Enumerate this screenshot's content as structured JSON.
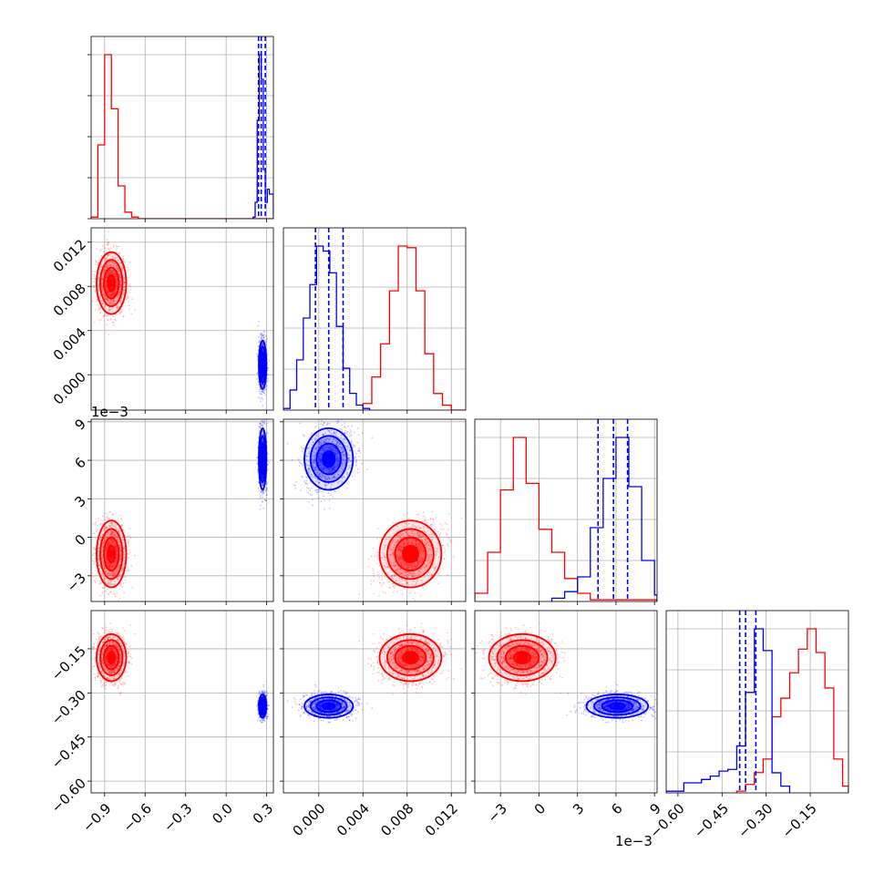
{
  "chart_data": {
    "type": "corner",
    "parameters": [
      {
        "ticks": [
          -0.9,
          -0.6,
          -0.3,
          0.0,
          0.3
        ],
        "tick_labels": [
          "−0.9",
          "−0.6",
          "−0.3",
          "0.0",
          "0.3"
        ],
        "range": [
          -1.0,
          0.35
        ]
      },
      {
        "ticks": [
          0.0,
          0.004,
          0.008,
          0.012
        ],
        "tick_labels": [
          "0.000",
          "0.004",
          "0.008",
          "0.012"
        ],
        "range": [
          -0.0032,
          0.0133
        ]
      },
      {
        "ticks": [
          -3,
          0,
          3,
          6,
          9
        ],
        "tick_labels": [
          "−3",
          "0",
          "3",
          "6",
          "9"
        ],
        "range": [
          -5,
          9.2
        ],
        "offset_label": "1e−3"
      },
      {
        "ticks": [
          -0.6,
          -0.45,
          -0.3,
          -0.15
        ],
        "tick_labels": [
          "−0.60",
          "−0.45",
          "−0.30",
          "−0.15"
        ],
        "range": [
          -0.64,
          -0.02
        ]
      }
    ],
    "series": [
      {
        "color": "#ff0000",
        "means": [
          -0.85,
          0.0083,
          -1.3,
          -0.18
        ],
        "sigmas": [
          0.055,
          0.0014,
          1.3,
          0.04
        ],
        "histograms": [
          {
            "edges": [
              -1.0,
              -0.95,
              -0.9,
              -0.85,
              -0.8,
              -0.75,
              -0.7,
              -0.65,
              -0.6,
              -0.55,
              0.35
            ],
            "counts": [
              0.01,
              0.45,
              1.0,
              0.67,
              0.2,
              0.04,
              0.01,
              0,
              0,
              0
            ]
          },
          {
            "edges": [
              0.004,
              0.0048,
              0.0056,
              0.0064,
              0.0072,
              0.008,
              0.0088,
              0.0096,
              0.0104,
              0.0112,
              0.012,
              0.0133
            ],
            "counts": [
              0.04,
              0.2,
              0.4,
              0.72,
              0.99,
              0.98,
              0.72,
              0.34,
              0.1,
              0.03,
              0
            ]
          },
          {
            "edges": [
              -5,
              -4,
              -3,
              -2,
              -1,
              0,
              1,
              2,
              3,
              4,
              9.2
            ],
            "counts": [
              0.05,
              0.3,
              0.68,
              1.0,
              0.72,
              0.44,
              0.3,
              0.14,
              0.05,
              0.01
            ]
          },
          {
            "edges": [
              -0.4,
              -0.37,
              -0.34,
              -0.31,
              -0.28,
              -0.25,
              -0.22,
              -0.19,
              -0.16,
              -0.13,
              -0.1,
              -0.07,
              -0.04,
              -0.02
            ],
            "counts": [
              0.01,
              0.05,
              0.12,
              0.2,
              0.45,
              0.56,
              0.71,
              0.85,
              0.97,
              0.83,
              0.62,
              0.2,
              0.04
            ]
          }
        ]
      },
      {
        "color": "#0000ff",
        "means": [
          0.27,
          0.0009,
          6.1,
          -0.345
        ],
        "sigmas": [
          0.014,
          0.0011,
          1.2,
          0.02
        ],
        "quantiles": [
          [
            0.24,
            0.26,
            0.29
          ],
          [
            -0.0003,
            0.0009,
            0.0022
          ],
          [
            4.6,
            5.8,
            6.9
          ],
          [
            -0.39,
            -0.37,
            -0.335
          ]
        ],
        "histograms": [
          {
            "edges": [
              0.2,
              0.215,
              0.23,
              0.245,
              0.26,
              0.275,
              0.29,
              0.305,
              0.32,
              0.35
            ],
            "counts": [
              0.01,
              0.1,
              0.6,
              1.0,
              0.85,
              0.3,
              0.1,
              0.18,
              0.15
            ]
          },
          {
            "edges": [
              -0.0032,
              -0.0026,
              -0.002,
              -0.0014,
              -0.0008,
              -0.0002,
              0.0004,
              0.001,
              0.0016,
              0.0022,
              0.0028,
              0.0034,
              0.004,
              0.0046
            ],
            "counts": [
              0.01,
              0.12,
              0.3,
              0.55,
              0.75,
              0.98,
              0.95,
              0.82,
              0.5,
              0.25,
              0.1,
              0.03,
              0.01
            ]
          },
          {
            "edges": [
              1,
              2,
              3,
              4,
              5,
              6,
              7,
              8,
              9,
              9.2
            ],
            "counts": [
              0.02,
              0.06,
              0.15,
              0.45,
              0.75,
              1.0,
              0.7,
              0.25,
              0.04
            ]
          },
          {
            "edges": [
              -0.64,
              -0.58,
              -0.52,
              -0.49,
              -0.46,
              -0.43,
              -0.4,
              -0.37,
              -0.34,
              -0.31,
              -0.28,
              -0.25,
              -0.22
            ],
            "counts": [
              0.01,
              0.06,
              0.08,
              0.1,
              0.13,
              0.14,
              0.28,
              0.6,
              0.98,
              0.85,
              0.12,
              0.04
            ]
          }
        ]
      }
    ]
  }
}
